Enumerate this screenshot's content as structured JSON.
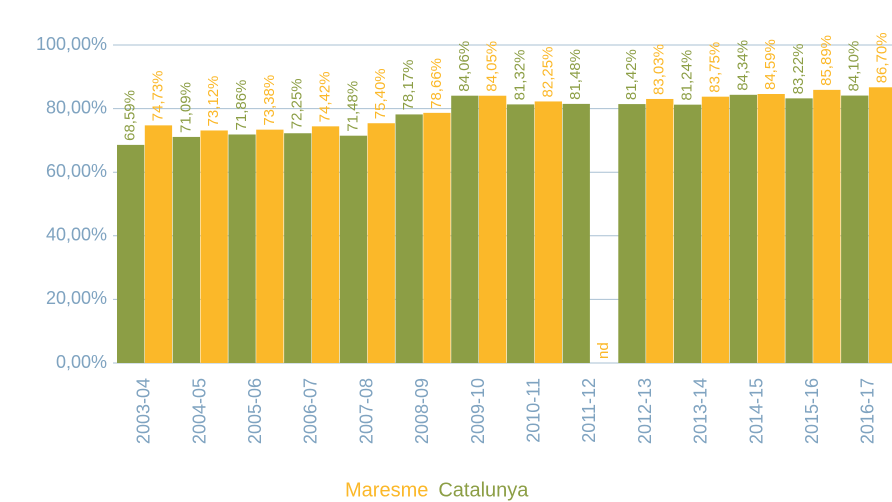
{
  "chart_data": {
    "type": "bar",
    "categories": [
      "2003-04",
      "2004-05",
      "2005-06",
      "2006-07",
      "2007-08",
      "2008-09",
      "2009-10",
      "2010-11",
      "2011-12",
      "2012-13",
      "2013-14",
      "2014-15",
      "2015-16",
      "2016-17"
    ],
    "series": [
      {
        "name": "Catalunya",
        "color": "#8c9e45",
        "values": [
          68.59,
          71.09,
          71.86,
          72.25,
          71.48,
          78.17,
          84.06,
          81.32,
          81.48,
          81.42,
          81.24,
          84.34,
          83.22,
          84.1
        ],
        "value_labels": [
          "68,59%",
          "71,09%",
          "71,86%",
          "72,25%",
          "71,48%",
          "78,17%",
          "84,06%",
          "81,32%",
          "81,48%",
          "81,42%",
          "81,24%",
          "84,34%",
          "83,22%",
          "84,10%"
        ]
      },
      {
        "name": "Maresme",
        "color": "#fbb829",
        "values": [
          74.73,
          73.12,
          73.38,
          74.42,
          75.4,
          78.66,
          84.05,
          82.25,
          null,
          83.03,
          83.75,
          84.59,
          85.89,
          86.7
        ],
        "value_labels": [
          "74,73%",
          "73,12%",
          "73,38%",
          "74,42%",
          "75,40%",
          "78,66%",
          "84,05%",
          "82,25%",
          "nd",
          "83,03%",
          "83,75%",
          "84,59%",
          "85,89%",
          "86,70%"
        ]
      }
    ],
    "ylim": [
      0,
      100
    ],
    "yticks": [
      {
        "value": 0,
        "label": "0,00%"
      },
      {
        "value": 20,
        "label": "20,00%"
      },
      {
        "value": 40,
        "label": "40,00%"
      },
      {
        "value": 60,
        "label": "60,00%"
      },
      {
        "value": 80,
        "label": "80,00%"
      },
      {
        "value": 100,
        "label": "100,00%"
      }
    ],
    "grid": true
  }
}
